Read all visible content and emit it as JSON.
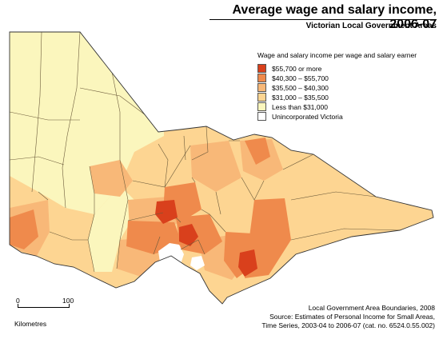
{
  "title": "Average wage and salary income, 2006-07",
  "subtitle": "Victorian Local Government Areas",
  "legend": {
    "title": "Wage and salary income per wage and salary earner",
    "items": [
      {
        "label": "$55,700 or more",
        "color": "#d9401c"
      },
      {
        "label": "$40,300 – $55,700",
        "color": "#ef8a4c"
      },
      {
        "label": "$35,500 – $40,300",
        "color": "#f8b878"
      },
      {
        "label": "$31,000 – $35,500",
        "color": "#fdd592"
      },
      {
        "label": "Less than $31,000",
        "color": "#fbf6bd"
      },
      {
        "label": "Unincorporated Victoria",
        "color": "#ffffff"
      }
    ]
  },
  "scale": {
    "start": "0",
    "end": "100",
    "unit": "Kilometres"
  },
  "source": {
    "line1": "Local Government Area Boundaries, 2008",
    "line2": "Source: Estimates of Personal Income for Small Areas,",
    "line3": "Time Series, 2003-04 to 2006-07 (cat. no. 6524.0.55.002)"
  }
}
